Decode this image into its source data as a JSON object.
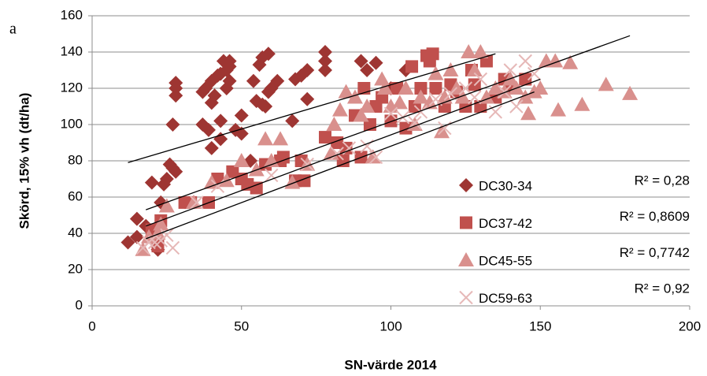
{
  "chart_data": {
    "type": "scatter",
    "panel_label": "a",
    "xlabel": "SN-värde 2014",
    "ylabel": "Skörd, 15% vh (dt/ha)",
    "xlim": [
      0,
      200
    ],
    "xticks": [
      0,
      50,
      100,
      150,
      200
    ],
    "ylim": [
      0,
      160
    ],
    "yticks": [
      0,
      20,
      40,
      60,
      80,
      100,
      120,
      140,
      160
    ],
    "grid": true,
    "series": [
      {
        "name": "DC30-34",
        "color": "#9e3532",
        "marker": "diamond",
        "x": [
          12,
          15,
          15,
          18,
          20,
          22,
          23,
          24,
          25,
          26,
          27,
          27,
          28,
          28,
          28,
          28,
          37,
          37,
          38,
          39,
          40,
          40,
          40,
          41,
          42,
          43,
          43,
          43,
          44,
          45,
          45,
          46,
          46,
          46,
          48,
          50,
          50,
          53,
          54,
          55,
          56,
          57,
          57,
          58,
          59,
          59,
          60,
          62,
          67,
          68,
          70,
          72,
          72,
          78,
          78,
          78,
          90,
          92,
          95,
          100,
          105
        ],
        "values": [
          35,
          38,
          48,
          44,
          68,
          31,
          57,
          67,
          70,
          78,
          76,
          100,
          116,
          120,
          123,
          74,
          100,
          118,
          120,
          97,
          87,
          112,
          124,
          116,
          127,
          92,
          102,
          128,
          135,
          120,
          130,
          124,
          132,
          135,
          97,
          95,
          105,
          80,
          124,
          113,
          133,
          111,
          137,
          110,
          139,
          118,
          120,
          124,
          102,
          125,
          127,
          114,
          130,
          130,
          135,
          140,
          135,
          130,
          134,
          120,
          130
        ],
        "trendline": {
          "x": [
            12,
            135
          ],
          "y": [
            79,
            139
          ]
        },
        "r_squared_label": "R² = 0,28"
      },
      {
        "name": "DC37-42",
        "color": "#c0504d",
        "marker": "square",
        "x": [
          20,
          21,
          22,
          23,
          31,
          33,
          39,
          42,
          47,
          50,
          52,
          55,
          58,
          63,
          64,
          68,
          70,
          71,
          78,
          82,
          84,
          85,
          88,
          90,
          91,
          93,
          95,
          97,
          100,
          102,
          105,
          107,
          108,
          110,
          112,
          113,
          114,
          115,
          118,
          120,
          122,
          125,
          127,
          128,
          130,
          132,
          135,
          138,
          140,
          145
        ],
        "values": [
          42,
          38,
          33,
          47,
          57,
          57,
          57,
          70,
          74,
          70,
          67,
          65,
          78,
          80,
          82,
          69,
          80,
          69,
          93,
          90,
          80,
          87,
          105,
          82,
          120,
          100,
          110,
          115,
          102,
          120,
          98,
          132,
          110,
          120,
          138,
          135,
          139,
          120,
          110,
          122,
          118,
          110,
          130,
          122,
          110,
          135,
          115,
          125,
          120,
          125
        ],
        "trendline": {
          "x": [
            18,
            180
          ],
          "y": [
            53,
            149
          ]
        },
        "r_squared_label": "R² = 0,8609"
      },
      {
        "name": "DC45-55",
        "color": "#d9908d",
        "marker": "triangle",
        "x": [
          17,
          19,
          22,
          23,
          25,
          34,
          40,
          45,
          50,
          55,
          58,
          60,
          63,
          67,
          72,
          80,
          81,
          83,
          85,
          88,
          90,
          92,
          94,
          97,
          98,
          100,
          103,
          105,
          108,
          110,
          113,
          115,
          117,
          118,
          120,
          122,
          124,
          126,
          128,
          130,
          132,
          135,
          138,
          140,
          142,
          145,
          146,
          148,
          150,
          152,
          155,
          156,
          160,
          164,
          172,
          180
        ],
        "values": [
          31,
          38,
          40,
          45,
          55,
          57,
          68,
          69,
          80,
          75,
          92,
          80,
          92,
          68,
          78,
          84,
          100,
          108,
          118,
          115,
          105,
          110,
          82,
          125,
          120,
          110,
          112,
          120,
          100,
          115,
          112,
          128,
          96,
          115,
          130,
          120,
          115,
          140,
          130,
          140,
          115,
          120,
          118,
          125,
          120,
          115,
          106,
          118,
          120,
          135,
          135,
          108,
          134,
          111,
          122,
          117
        ],
        "trendline": {
          "x": [
            18,
            150
          ],
          "y": [
            44,
            125
          ]
        },
        "r_squared_label": "R² = 0,7742"
      },
      {
        "name": "DC59-63",
        "color": "#e6b8b7",
        "marker": "x",
        "x": [
          17,
          19,
          21,
          23,
          25,
          27,
          35,
          42,
          60,
          72,
          82,
          86,
          92,
          95,
          100,
          104,
          108,
          110,
          115,
          118,
          120,
          125,
          128,
          130,
          135,
          138,
          140,
          142,
          145,
          148
        ],
        "values": [
          32,
          35,
          35,
          36,
          39,
          32,
          57,
          66,
          72,
          78,
          84,
          87,
          88,
          82,
          106,
          104,
          101,
          107,
          114,
          98,
          117,
          120,
          115,
          125,
          107,
          118,
          130,
          110,
          135,
          128
        ],
        "trendline": {
          "x": [
            18,
            148
          ],
          "y": [
            37,
            118
          ]
        },
        "r_squared_label": "R² = 0,92"
      }
    ]
  }
}
